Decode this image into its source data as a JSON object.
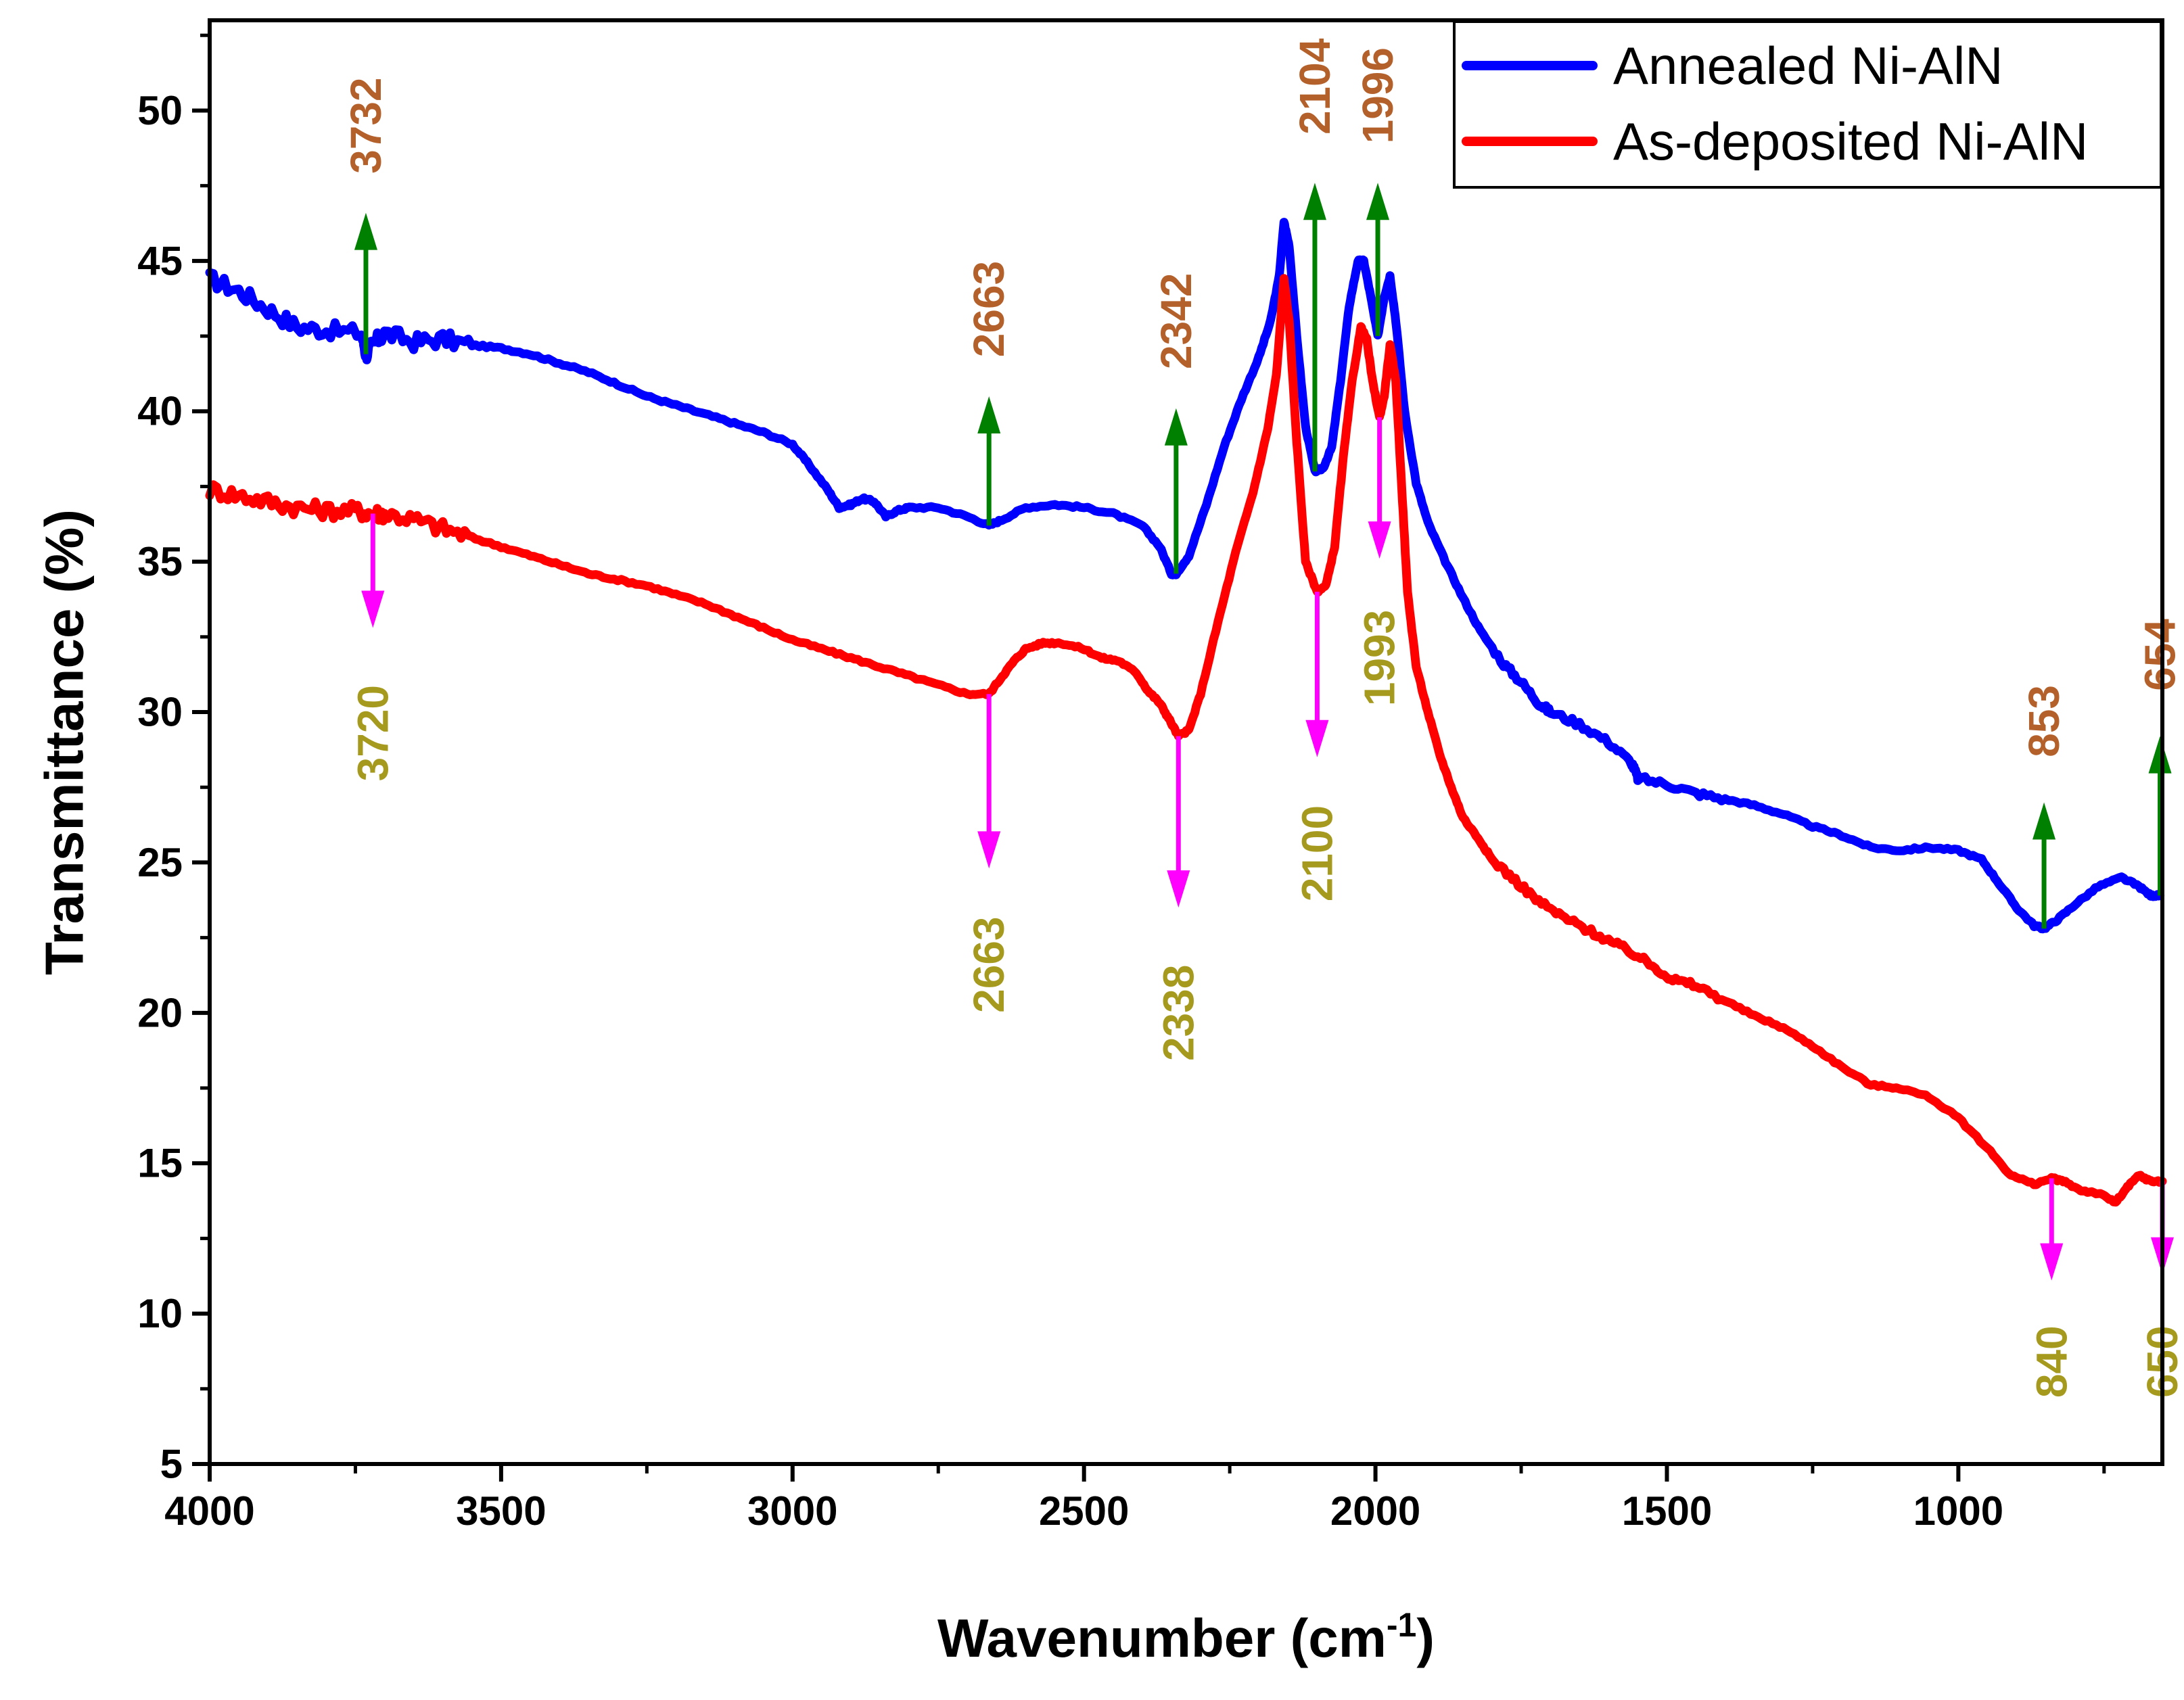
{
  "chart_data": {
    "type": "line",
    "title": "",
    "xlabel": "Wavenumber (cm",
    "xlabel_superscript": "-1",
    "xlabel_suffix": ")",
    "ylabel": "Transmittance (%)",
    "xlim": [
      4000,
      650
    ],
    "ylim": [
      5,
      53
    ],
    "x_reversed": true,
    "grid": false,
    "legend_position": "top-right",
    "x_ticks": [
      4000,
      3500,
      3000,
      2500,
      2000,
      1500,
      1000
    ],
    "x_tick_labels": [
      "4000",
      "3500",
      "3000",
      "2500",
      "2000",
      "1500",
      "1000"
    ],
    "y_ticks": [
      5,
      10,
      15,
      20,
      25,
      30,
      35,
      40,
      45,
      50
    ],
    "y_tick_labels": [
      "5",
      "10",
      "15",
      "20",
      "25",
      "30",
      "35",
      "40",
      "45",
      "50"
    ],
    "series": [
      {
        "name": "Annealed Ni-AlN",
        "color": "#0000ff",
        "points": [
          [
            4000,
            44.4
          ],
          [
            3950,
            44.0
          ],
          [
            3900,
            43.4
          ],
          [
            3850,
            42.8
          ],
          [
            3800,
            42.7
          ],
          [
            3740,
            42.6
          ],
          [
            3732,
            41.9
          ],
          [
            3720,
            42.2
          ],
          [
            3700,
            42.6
          ],
          [
            3650,
            42.3
          ],
          [
            3600,
            42.4
          ],
          [
            3550,
            42.2
          ],
          [
            3500,
            42.1
          ],
          [
            3450,
            41.9
          ],
          [
            3400,
            41.6
          ],
          [
            3350,
            41.3
          ],
          [
            3300,
            40.9
          ],
          [
            3250,
            40.5
          ],
          [
            3200,
            40.2
          ],
          [
            3150,
            39.9
          ],
          [
            3100,
            39.6
          ],
          [
            3050,
            39.3
          ],
          [
            3000,
            38.9
          ],
          [
            2975,
            38.3
          ],
          [
            2940,
            37.4
          ],
          [
            2920,
            36.8
          ],
          [
            2900,
            36.9
          ],
          [
            2880,
            37.1
          ],
          [
            2860,
            37.0
          ],
          [
            2840,
            36.5
          ],
          [
            2820,
            36.7
          ],
          [
            2800,
            36.8
          ],
          [
            2750,
            36.8
          ],
          [
            2700,
            36.5
          ],
          [
            2663,
            36.2
          ],
          [
            2640,
            36.4
          ],
          [
            2600,
            36.8
          ],
          [
            2550,
            36.9
          ],
          [
            2500,
            36.8
          ],
          [
            2450,
            36.6
          ],
          [
            2400,
            36.2
          ],
          [
            2370,
            35.5
          ],
          [
            2350,
            34.6
          ],
          [
            2342,
            34.6
          ],
          [
            2320,
            35.2
          ],
          [
            2290,
            36.9
          ],
          [
            2260,
            38.8
          ],
          [
            2230,
            40.4
          ],
          [
            2200,
            41.8
          ],
          [
            2180,
            43.0
          ],
          [
            2165,
            44.5
          ],
          [
            2157,
            46.3
          ],
          [
            2148,
            45.5
          ],
          [
            2135,
            42.5
          ],
          [
            2120,
            39.5
          ],
          [
            2104,
            38.0
          ],
          [
            2090,
            38.1
          ],
          [
            2075,
            38.8
          ],
          [
            2060,
            41.0
          ],
          [
            2045,
            43.5
          ],
          [
            2030,
            45.0
          ],
          [
            2020,
            45.0
          ],
          [
            2010,
            44.0
          ],
          [
            1996,
            42.5
          ],
          [
            1985,
            43.8
          ],
          [
            1975,
            44.5
          ],
          [
            1965,
            43.0
          ],
          [
            1950,
            40.0
          ],
          [
            1930,
            37.6
          ],
          [
            1910,
            36.3
          ],
          [
            1880,
            35.0
          ],
          [
            1850,
            33.8
          ],
          [
            1820,
            32.7
          ],
          [
            1780,
            31.6
          ],
          [
            1750,
            31.0
          ],
          [
            1720,
            30.3
          ],
          [
            1700,
            30.0
          ],
          [
            1650,
            29.6
          ],
          [
            1600,
            29.0
          ],
          [
            1560,
            28.3
          ],
          [
            1550,
            27.8
          ],
          [
            1500,
            27.6
          ],
          [
            1450,
            27.3
          ],
          [
            1400,
            27.1
          ],
          [
            1350,
            26.9
          ],
          [
            1300,
            26.6
          ],
          [
            1250,
            26.2
          ],
          [
            1200,
            25.9
          ],
          [
            1150,
            25.5
          ],
          [
            1100,
            25.4
          ],
          [
            1050,
            25.5
          ],
          [
            1000,
            25.4
          ],
          [
            960,
            25.1
          ],
          [
            930,
            24.3
          ],
          [
            900,
            23.5
          ],
          [
            870,
            22.9
          ],
          [
            853,
            22.8
          ],
          [
            830,
            23.1
          ],
          [
            800,
            23.6
          ],
          [
            760,
            24.2
          ],
          [
            720,
            24.5
          ],
          [
            690,
            24.2
          ],
          [
            670,
            23.9
          ],
          [
            654,
            23.9
          ]
        ]
      },
      {
        "name": "As-deposited Ni-AlN",
        "color": "#ff0000",
        "points": [
          [
            4000,
            37.4
          ],
          [
            3950,
            37.2
          ],
          [
            3900,
            37.0
          ],
          [
            3850,
            36.8
          ],
          [
            3800,
            36.7
          ],
          [
            3750,
            36.7
          ],
          [
            3720,
            36.6
          ],
          [
            3700,
            36.6
          ],
          [
            3650,
            36.4
          ],
          [
            3600,
            36.1
          ],
          [
            3550,
            35.8
          ],
          [
            3500,
            35.5
          ],
          [
            3450,
            35.2
          ],
          [
            3400,
            34.9
          ],
          [
            3350,
            34.6
          ],
          [
            3300,
            34.4
          ],
          [
            3250,
            34.2
          ],
          [
            3200,
            33.9
          ],
          [
            3150,
            33.6
          ],
          [
            3100,
            33.2
          ],
          [
            3050,
            32.8
          ],
          [
            3000,
            32.4
          ],
          [
            2950,
            32.1
          ],
          [
            2900,
            31.8
          ],
          [
            2850,
            31.5
          ],
          [
            2800,
            31.2
          ],
          [
            2750,
            30.9
          ],
          [
            2700,
            30.6
          ],
          [
            2663,
            30.6
          ],
          [
            2640,
            31.2
          ],
          [
            2620,
            31.7
          ],
          [
            2600,
            32.1
          ],
          [
            2570,
            32.3
          ],
          [
            2540,
            32.3
          ],
          [
            2500,
            32.1
          ],
          [
            2470,
            31.8
          ],
          [
            2440,
            31.7
          ],
          [
            2410,
            31.3
          ],
          [
            2390,
            30.7
          ],
          [
            2370,
            30.3
          ],
          [
            2355,
            29.8
          ],
          [
            2338,
            29.2
          ],
          [
            2320,
            29.4
          ],
          [
            2300,
            30.6
          ],
          [
            2270,
            33.0
          ],
          [
            2240,
            35.3
          ],
          [
            2210,
            37.3
          ],
          [
            2185,
            39.4
          ],
          [
            2170,
            41.2
          ],
          [
            2157,
            44.4
          ],
          [
            2148,
            43.0
          ],
          [
            2135,
            39.0
          ],
          [
            2120,
            35.0
          ],
          [
            2100,
            34.0
          ],
          [
            2085,
            34.2
          ],
          [
            2070,
            35.5
          ],
          [
            2055,
            38.5
          ],
          [
            2040,
            41.0
          ],
          [
            2025,
            42.8
          ],
          [
            2015,
            42.4
          ],
          [
            2005,
            41.0
          ],
          [
            1993,
            39.8
          ],
          [
            1985,
            40.5
          ],
          [
            1975,
            42.2
          ],
          [
            1965,
            41.0
          ],
          [
            1955,
            37.5
          ],
          [
            1945,
            34.0
          ],
          [
            1930,
            31.5
          ],
          [
            1910,
            30.0
          ],
          [
            1890,
            28.6
          ],
          [
            1870,
            27.5
          ],
          [
            1850,
            26.5
          ],
          [
            1820,
            25.7
          ],
          [
            1800,
            25.1
          ],
          [
            1760,
            24.4
          ],
          [
            1720,
            23.7
          ],
          [
            1680,
            23.2
          ],
          [
            1640,
            22.8
          ],
          [
            1600,
            22.4
          ],
          [
            1560,
            22.0
          ],
          [
            1520,
            21.5
          ],
          [
            1490,
            21.1
          ],
          [
            1450,
            20.9
          ],
          [
            1400,
            20.4
          ],
          [
            1350,
            19.9
          ],
          [
            1300,
            19.5
          ],
          [
            1250,
            18.9
          ],
          [
            1200,
            18.2
          ],
          [
            1150,
            17.6
          ],
          [
            1100,
            17.5
          ],
          [
            1050,
            17.2
          ],
          [
            1000,
            16.5
          ],
          [
            950,
            15.5
          ],
          [
            910,
            14.6
          ],
          [
            870,
            14.3
          ],
          [
            840,
            14.5
          ],
          [
            820,
            14.4
          ],
          [
            790,
            14.1
          ],
          [
            760,
            14.0
          ],
          [
            730,
            13.7
          ],
          [
            710,
            14.2
          ],
          [
            690,
            14.6
          ],
          [
            670,
            14.4
          ],
          [
            650,
            14.4
          ]
        ]
      }
    ],
    "annotations": [
      {
        "label": "3732",
        "x": 3732,
        "y_from": 41.9,
        "y_to": 46.6,
        "direction": "up",
        "arrow_color": "#008000",
        "text_color": "#b4602a",
        "label_y": 49.5
      },
      {
        "label": "2663",
        "x": 2663,
        "y_from": 36.2,
        "y_to": 40.5,
        "direction": "up",
        "arrow_color": "#008000",
        "text_color": "#b4602a",
        "label_y": 43.4
      },
      {
        "label": "2342",
        "x": 2342,
        "y_from": 34.6,
        "y_to": 40.1,
        "direction": "up",
        "arrow_color": "#008000",
        "text_color": "#b4602a",
        "label_y": 43.0
      },
      {
        "label": "2104",
        "x": 2104,
        "y_from": 38.0,
        "y_to": 47.6,
        "direction": "up",
        "arrow_color": "#008000",
        "text_color": "#b4602a",
        "label_y": 50.8
      },
      {
        "label": "1996",
        "x": 1996,
        "y_from": 42.5,
        "y_to": 47.6,
        "direction": "up",
        "arrow_color": "#008000",
        "text_color": "#b4602a",
        "label_y": 50.5
      },
      {
        "label": "853",
        "x": 853,
        "y_from": 22.8,
        "y_to": 27.0,
        "direction": "up",
        "arrow_color": "#008000",
        "text_color": "#b4602a",
        "label_y": 29.7
      },
      {
        "label": "654",
        "x": 654,
        "y_from": 23.9,
        "y_to": 29.2,
        "direction": "up",
        "arrow_color": "#008000",
        "text_color": "#b4602a",
        "label_y": 31.9
      },
      {
        "label": "3720",
        "x": 3720,
        "y_from": 36.6,
        "y_to": 32.8,
        "direction": "down",
        "arrow_color": "#ff00ff",
        "text_color": "#a69a1e",
        "label_y": 29.3
      },
      {
        "label": "2663",
        "x": 2663,
        "y_from": 30.6,
        "y_to": 24.8,
        "direction": "down",
        "arrow_color": "#ff00ff",
        "text_color": "#a69a1e",
        "label_y": 21.6
      },
      {
        "label": "2338",
        "x": 2338,
        "y_from": 29.2,
        "y_to": 23.5,
        "direction": "down",
        "arrow_color": "#ff00ff",
        "text_color": "#a69a1e",
        "label_y": 20.0
      },
      {
        "label": "2100",
        "x": 2100,
        "y_from": 34.0,
        "y_to": 28.5,
        "direction": "down",
        "arrow_color": "#ff00ff",
        "text_color": "#a69a1e",
        "label_y": 25.3
      },
      {
        "label": "1993",
        "x": 1993,
        "y_from": 39.8,
        "y_to": 35.1,
        "direction": "down",
        "arrow_color": "#ff00ff",
        "text_color": "#a69a1e",
        "label_y": 31.8
      },
      {
        "label": "840",
        "x": 840,
        "y_from": 14.5,
        "y_to": 11.1,
        "direction": "down",
        "arrow_color": "#ff00ff",
        "text_color": "#a69a1e",
        "label_y": 8.4
      },
      {
        "label": "650",
        "x": 650,
        "y_from": 14.4,
        "y_to": 11.3,
        "direction": "down",
        "arrow_color": "#ff00ff",
        "text_color": "#a69a1e",
        "label_y": 8.4
      }
    ]
  }
}
